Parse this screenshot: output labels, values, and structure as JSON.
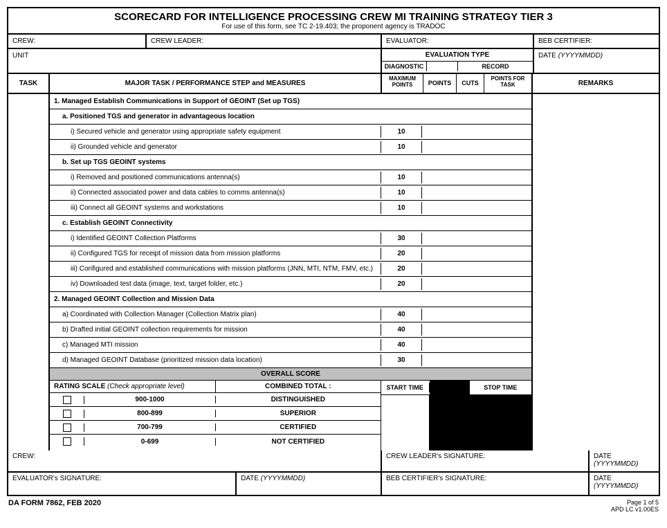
{
  "title": "SCORECARD FOR INTELLIGENCE PROCESSING CREW MI TRAINING STRATEGY TIER 3",
  "subtitle_prefix": "For use of this form, see TC 2-19.403; the proponent agency is ",
  "subtitle_agency": "TRADOC",
  "labels": {
    "crew": "CREW:",
    "crew_leader": "CREW LEADER:",
    "evaluator": "EVALUATOR:",
    "beb_certifier": "BEB CERTIFIER:",
    "unit": "UNIT",
    "evaluation_type": "EVALUATION TYPE",
    "date": "DATE",
    "date_fmt": "(YYYYMMDD)",
    "diagnostic": "DIAGNOSTIC",
    "record": "RECORD",
    "task": "TASK",
    "major_task": "MAJOR TASK / PERFORMANCE STEP and MEASURES",
    "max_points": "MAXIMUM POINTS",
    "points": "POINTS",
    "cuts": "CUTS",
    "points_for_task": "POINTS FOR TASK",
    "remarks": "REMARKS",
    "overall_score": "OVERALL SCORE",
    "rating_scale": "RATING SCALE",
    "rating_scale_note": "(Check appropriate level)",
    "combined_total": "COMBINED TOTAL :",
    "start_time": "START TIME",
    "stop_time": "STOP TIME",
    "crew_sig": "CREW:",
    "crew_leader_sig": "CREW LEADER's SIGNATURE:",
    "evaluator_sig": "EVALUATOR's SIGNATURE:",
    "beb_cert_sig": "BEB CERTIFIER's SIGNATURE:"
  },
  "rows": [
    {
      "type": "section",
      "text": "1. Managed Establish Communications in Support of GEOINT (Set up TGS)"
    },
    {
      "type": "sub",
      "text": "a. Positioned TGS and generator in advantageous location"
    },
    {
      "type": "item",
      "text": "i) Secured vehicle and generator using appropriate safety equipment",
      "max": "10"
    },
    {
      "type": "item",
      "text": "ii) Grounded vehicle and generator",
      "max": "10"
    },
    {
      "type": "sub",
      "text": "b. Set up TGS GEOINT systems"
    },
    {
      "type": "item",
      "text": "i) Removed and positioned communications antenna(s)",
      "max": "10"
    },
    {
      "type": "item",
      "text": "ii) Connected associated power and data cables to comms antenna(s)",
      "max": "10"
    },
    {
      "type": "item",
      "text": "iii) Connect all GEOINT systems and workstations",
      "max": "10"
    },
    {
      "type": "sub",
      "text": "c. Establish GEOINT Connectivity"
    },
    {
      "type": "item",
      "text": "i) Identified GEOINT Collection Platforms",
      "max": "30"
    },
    {
      "type": "item",
      "text": "ii) Configured TGS for receipt of mission data from mission platforms",
      "max": "20"
    },
    {
      "type": "item",
      "text": "iii) Configured and established communications with mission platforms (JNN, MTI, NTM, FMV, etc.)",
      "max": "20"
    },
    {
      "type": "item",
      "text": "iv) Downloaded test data (image, text, target folder, etc.)",
      "max": "20"
    },
    {
      "type": "section",
      "text": "2. Managed GEOINT Collection and Mission Data"
    },
    {
      "type": "item1",
      "text": "a) Coordinated with Collection Manager (Collection Matrix plan)",
      "max": "40"
    },
    {
      "type": "item1",
      "text": "b) Drafted initial GEOINT collection requirements for mission",
      "max": "40"
    },
    {
      "type": "item1",
      "text": "c) Managed MTI mission",
      "max": "40"
    },
    {
      "type": "item1",
      "text": "d) Managed GEOINT Database (prioritized mission data location)",
      "max": "30"
    }
  ],
  "ratings": [
    {
      "range": "900-1000",
      "level": "DISTINGUISHED"
    },
    {
      "range": "800-899",
      "level": "SUPERIOR"
    },
    {
      "range": "700-799",
      "level": "CERTIFIED"
    },
    {
      "range": "0-699",
      "level": "NOT CERTIFIED"
    }
  ],
  "footer": {
    "form": "DA FORM 7862, FEB 2020",
    "page": "Page 1 of 5",
    "version": "APD LC v1.00ES"
  }
}
